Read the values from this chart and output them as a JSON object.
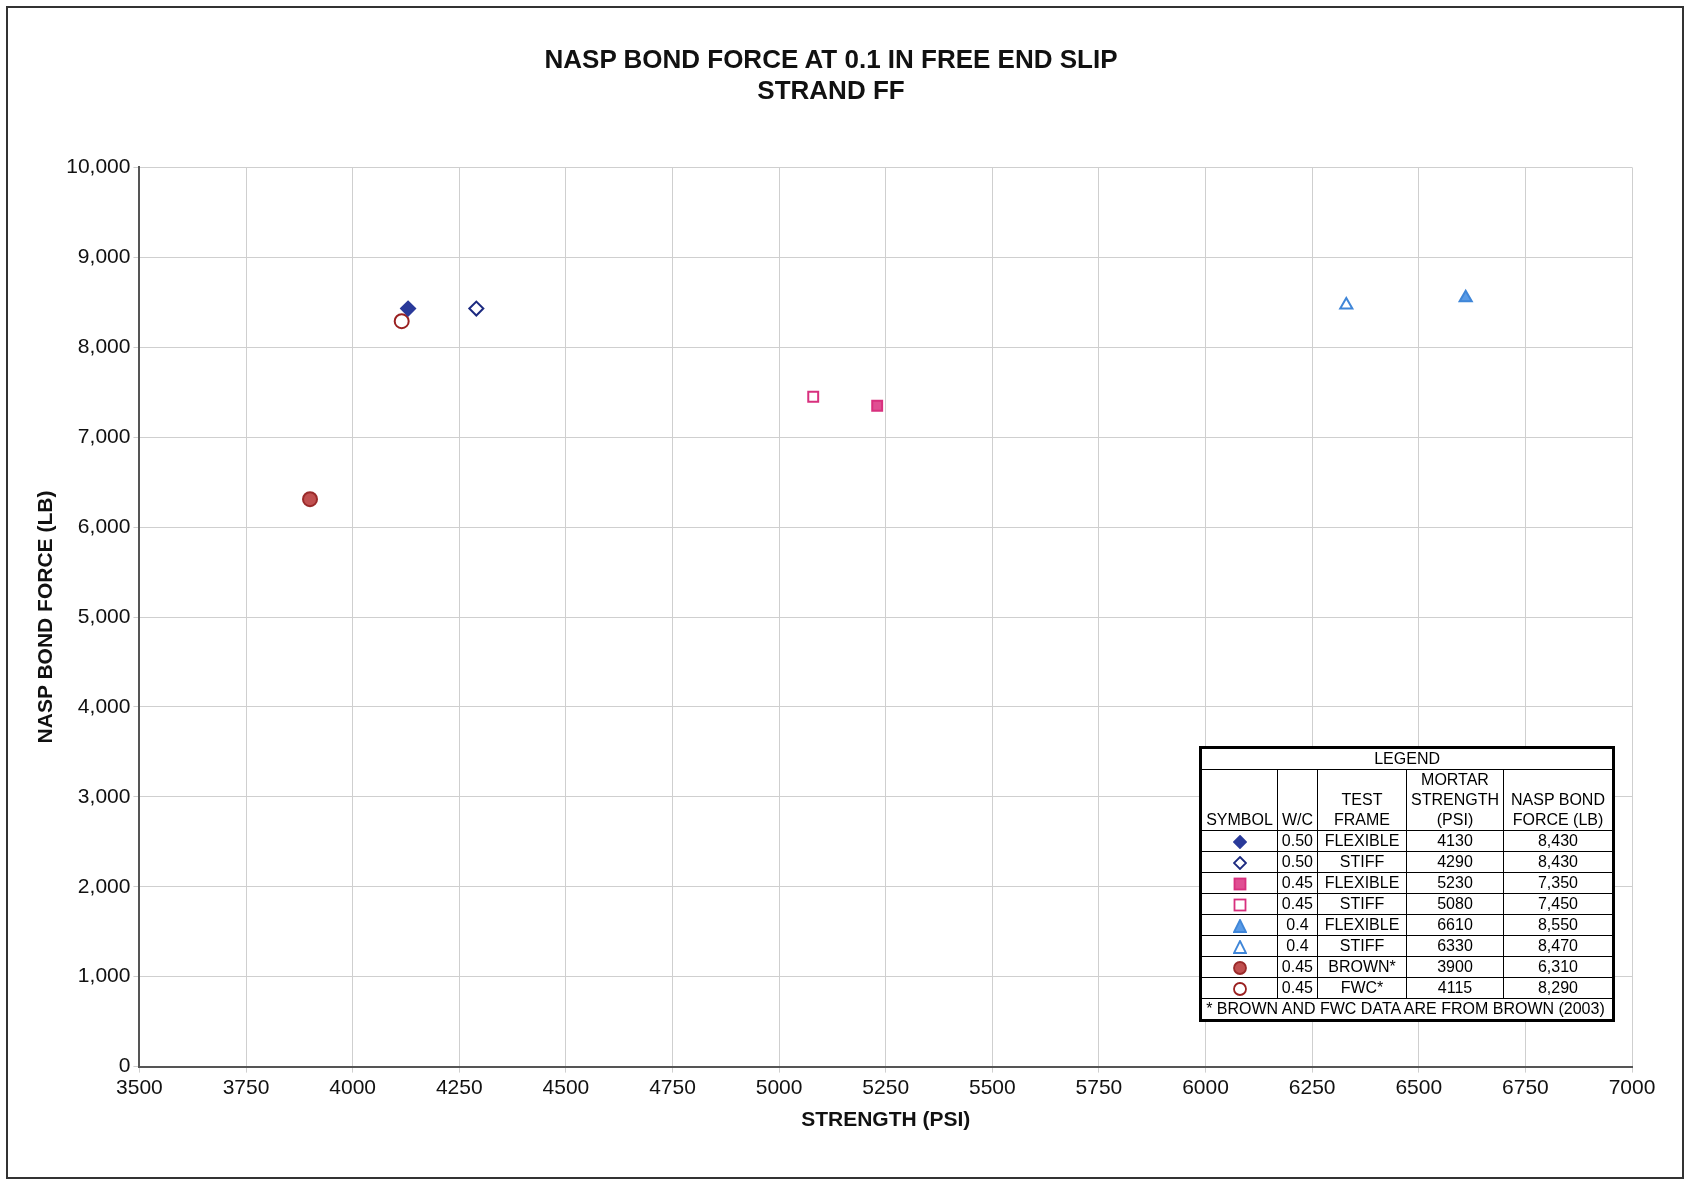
{
  "chart_data": {
    "type": "scatter",
    "title": "NASP BOND FORCE AT 0.1 IN FREE END SLIP",
    "subtitle": "STRAND FF",
    "xlabel": "STRENGTH (PSI)",
    "ylabel": "NASP BOND FORCE (LB)",
    "legend_title": "LEGEND",
    "annotations": [
      "SYMBOL",
      "W/C",
      "TEST FRAME",
      "MORTAR STRENGTH (PSI)",
      "NASP BOND FORCE (LB)",
      "* BROWN AND FWC DATA ARE FROM BROWN (2003)",
      "0.50",
      "FLEXIBLE",
      "4130",
      "8,430",
      "0.50",
      "STIFF",
      "4290",
      "8,430",
      "0.45",
      "FLEXIBLE",
      "5230",
      "7,350",
      "0.45",
      "STIFF",
      "5080",
      "7,450",
      "0.4",
      "FLEXIBLE",
      "6610",
      "8,550",
      "0.4",
      "STIFF",
      "6330",
      "8,470",
      "0.45",
      "BROWN*",
      "3900",
      "6,310",
      "0.45",
      "FWC*",
      "4115",
      "8,290"
    ],
    "series": [
      {
        "marker": "diamond",
        "color": "#2a3a9a",
        "colors": [
          "#2a3a9a"
        ],
        "x": [
          4130
        ],
        "values": [
          8430
        ]
      },
      {
        "marker": "diamond",
        "color": "#1c2a80",
        "colors": [
          "#ffffff"
        ],
        "x": [
          4290
        ],
        "values": [
          8430
        ]
      },
      {
        "marker": "square",
        "color": "#d8307e",
        "colors": [
          "#e04f93"
        ],
        "x": [
          5230
        ],
        "values": [
          7350
        ]
      },
      {
        "marker": "square",
        "color": "#d8307e",
        "colors": [
          "#ffffff"
        ],
        "x": [
          5080
        ],
        "values": [
          7450
        ]
      },
      {
        "marker": "triangle",
        "color": "#3f86d8",
        "colors": [
          "#5a9be6"
        ],
        "x": [
          6610
        ],
        "values": [
          8550
        ]
      },
      {
        "marker": "triangle",
        "color": "#3f86d8",
        "colors": [
          "#ffffff"
        ],
        "x": [
          6330
        ],
        "values": [
          8470
        ]
      },
      {
        "marker": "circle",
        "color": "#9a2a2a",
        "colors": [
          "#c05050"
        ],
        "x": [
          3900
        ],
        "values": [
          6310
        ]
      },
      {
        "marker": "circle",
        "color": "#9a2020",
        "colors": [
          "#ffffff"
        ],
        "x": [
          4115
        ],
        "values": [
          8290
        ]
      }
    ],
    "xlim": [
      3500,
      7000
    ],
    "xticks": [
      3500,
      3750,
      4000,
      4250,
      4500,
      4750,
      5000,
      5250,
      5500,
      5750,
      6000,
      6250,
      6500,
      6750,
      7000
    ],
    "ylim": [
      0,
      10000
    ],
    "yticks": [
      0,
      {
        "value": 1000,
        "label": "1,000"
      },
      {
        "value": 2000,
        "label": "2,000"
      },
      {
        "value": 3000,
        "label": "3,000"
      },
      {
        "value": 4000,
        "label": "4,000"
      },
      {
        "value": 5000,
        "label": "5,000"
      },
      {
        "value": 6000,
        "label": "6,000"
      },
      {
        "value": 7000,
        "label": "7,000"
      },
      {
        "value": 8000,
        "label": "8,000"
      },
      {
        "value": 9000,
        "label": "9,000"
      },
      {
        "value": 10000,
        "label": "10,000"
      }
    ],
    "grid": true
  }
}
